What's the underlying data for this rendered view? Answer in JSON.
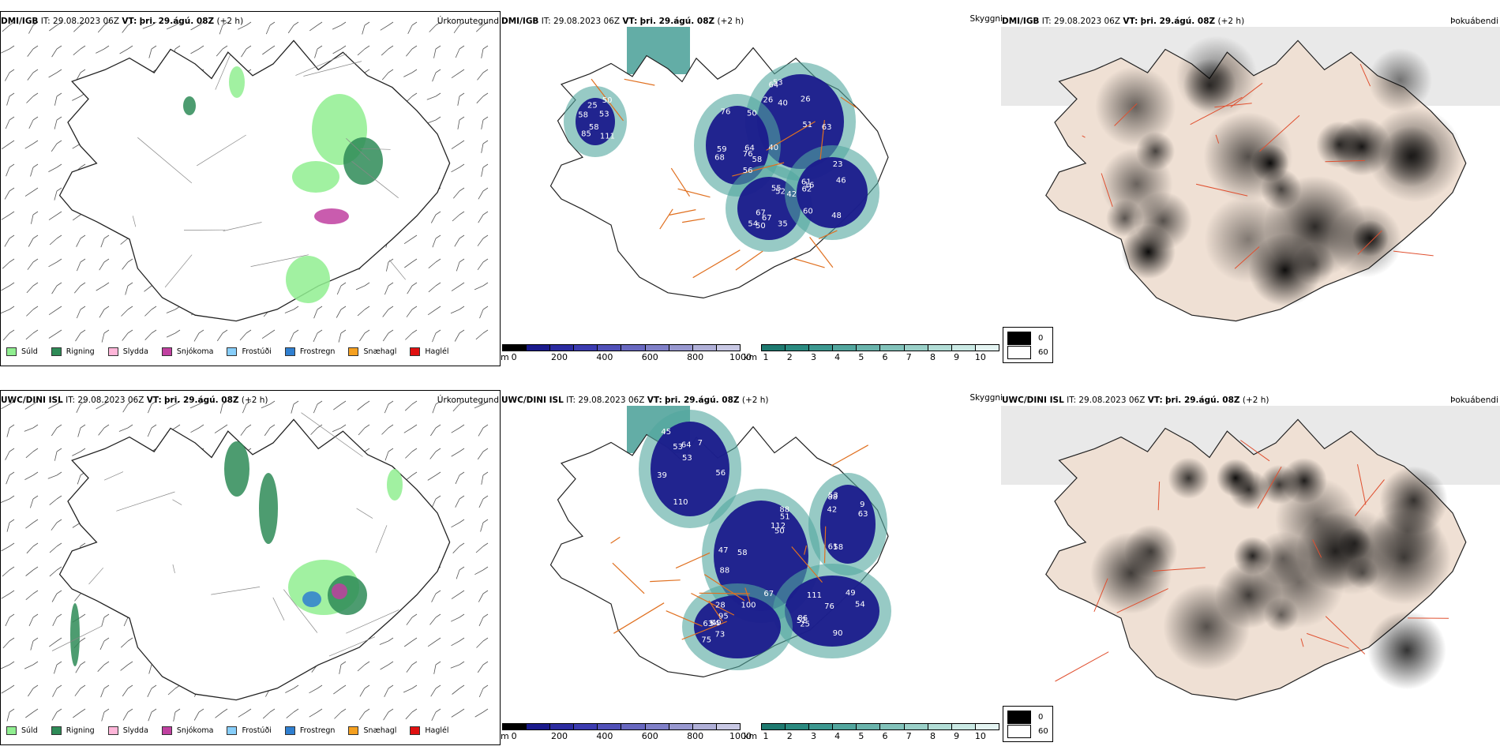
{
  "rows": [
    {
      "model": "DMI/IGB",
      "it_label": "IT:",
      "it_value": "29.08.2023 06Z",
      "vt_label": "VT:",
      "vt_value": "þri. 29.ágú. 08Z",
      "offset": "(+2 h)"
    },
    {
      "model": "UWC/DINI ISL",
      "it_label": "IT:",
      "it_value": "29.08.2023 06Z",
      "vt_label": "VT:",
      "vt_value": "þri. 29.ágú. 08Z",
      "offset": "(+2 h)"
    }
  ],
  "panel_titles": {
    "precip": "Úrkomutegund",
    "cloud": "Skyggni",
    "fog": "Þokuábendi"
  },
  "precip_legend": [
    {
      "label": "Súld",
      "color": "#90ee90"
    },
    {
      "label": "Rigning",
      "color": "#2e8b57"
    },
    {
      "label": "Slydda",
      "color": "#ffb6d9"
    },
    {
      "label": "Snjókoma",
      "color": "#c040a0"
    },
    {
      "label": "Frostúði",
      "color": "#87cefa"
    },
    {
      "label": "Frostregn",
      "color": "#2f7fd0"
    },
    {
      "label": "Snæhagl",
      "color": "#f5a020"
    },
    {
      "label": "Haglél",
      "color": "#e01010"
    }
  ],
  "cloudbase_scale": {
    "unit": "m",
    "ticks": [
      "0",
      "200",
      "400",
      "600",
      "800",
      "1000"
    ],
    "colors": [
      "#000000",
      "#1a1a8c",
      "#2b2ba0",
      "#3b3bb0",
      "#5050b8",
      "#6868c0",
      "#8080c8",
      "#9898d0",
      "#b0b0d8",
      "#c8c8e4"
    ]
  },
  "visibility_scale": {
    "unit": "km",
    "ticks": [
      "1",
      "2",
      "3",
      "4",
      "5",
      "6",
      "7",
      "8",
      "9",
      "10"
    ],
    "colors": [
      "#1e7a70",
      "#2a8a80",
      "#3c9890",
      "#52a69e",
      "#6ab4ac",
      "#82c2ba",
      "#9ad0c8",
      "#b2ddd6",
      "#cae9e4",
      "#e4f4f2"
    ]
  },
  "fog_legend": [
    {
      "label": "0",
      "color": "#000000"
    },
    {
      "label": "60",
      "color": "#ffffff"
    }
  ],
  "cloud_labels_top": [
    "40",
    "58",
    "52",
    "61",
    "58",
    "53",
    "59",
    "50",
    "62",
    "111",
    "63",
    "56",
    "67",
    "60",
    "58",
    "40",
    "76",
    "55",
    "48",
    "53",
    "51",
    "50",
    "42",
    "46",
    "85",
    "64",
    "68",
    "54",
    "23",
    "25",
    "26",
    "64",
    "35",
    "16",
    "50",
    "26",
    "76",
    "67"
  ],
  "cloud_labels_bottom": [
    "110",
    "112",
    "86",
    "95",
    "88",
    "39",
    "88",
    "76",
    "100",
    "63",
    "56",
    "58",
    "52",
    "75",
    "53",
    "45",
    "47",
    "49",
    "73",
    "61",
    "53",
    "88",
    "54",
    "49",
    "42",
    "53",
    "50",
    "90",
    "28",
    "58",
    "64",
    "67",
    "25",
    "63",
    "9",
    "7",
    "51",
    "111",
    "54"
  ]
}
